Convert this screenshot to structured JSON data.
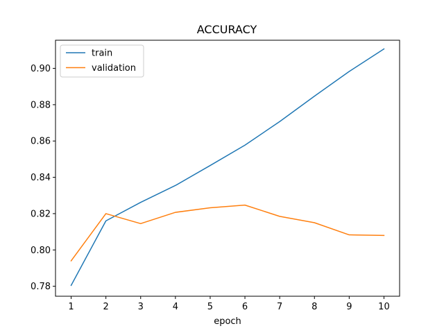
{
  "chart_data": {
    "type": "line",
    "title": "ACCURACY",
    "xlabel": "epoch",
    "ylabel": "",
    "x": [
      1,
      2,
      3,
      4,
      5,
      6,
      7,
      8,
      9,
      10
    ],
    "xlim": [
      0.55,
      10.45
    ],
    "ylim": [
      0.7745,
      0.9155
    ],
    "yticks": [
      0.78,
      0.8,
      0.82,
      0.84,
      0.86,
      0.88,
      0.9
    ],
    "ytick_labels": [
      "0.78",
      "0.80",
      "0.82",
      "0.84",
      "0.86",
      "0.88",
      "0.90"
    ],
    "xticks": [
      1,
      2,
      3,
      4,
      5,
      6,
      7,
      8,
      9,
      10
    ],
    "xtick_labels": [
      "1",
      "2",
      "3",
      "4",
      "5",
      "6",
      "7",
      "8",
      "9",
      "10"
    ],
    "grid": false,
    "legend_position": "top-left",
    "series": [
      {
        "name": "train",
        "color": "#1f77b4",
        "values": [
          0.7805,
          0.816,
          0.8262,
          0.8355,
          0.8465,
          0.8577,
          0.8707,
          0.8847,
          0.8983,
          0.9107
        ]
      },
      {
        "name": "validation",
        "color": "#ff7f0e",
        "values": [
          0.794,
          0.82,
          0.8145,
          0.8207,
          0.8232,
          0.8247,
          0.8185,
          0.815,
          0.8083,
          0.808
        ]
      }
    ]
  }
}
